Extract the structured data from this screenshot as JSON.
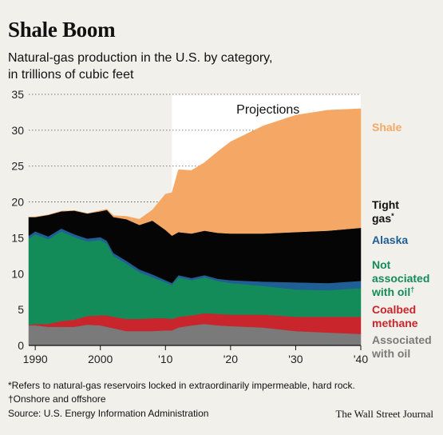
{
  "header": {
    "title": "Shale Boom",
    "subtitle_line1": "Natural-gas production in the U.S. by category,",
    "subtitle_line2": "in trillions of cubic feet"
  },
  "footer": {
    "note1": "*Refers to natural-gas reservoirs locked in extraordinarily impermeable, hard rock.",
    "note2": "†Onshore and offshore",
    "source": "Source: U.S. Energy Information Administration",
    "credit": "The Wall Street Journal"
  },
  "chart_data": {
    "type": "area",
    "stacked": true,
    "title": "Shale Boom",
    "subtitle": "Natural-gas production in the U.S. by category, in trillions of cubic feet",
    "annotation": "Projections",
    "projection_start": 2011,
    "xlim": [
      1989,
      2040
    ],
    "ylim": [
      0,
      35
    ],
    "y_ticks": [
      0,
      5,
      10,
      15,
      20,
      25,
      30,
      35
    ],
    "x_ticks": [
      1990,
      2000,
      2010,
      2020,
      2030,
      2040
    ],
    "x_tick_labels": [
      "1990",
      "2000",
      "'10",
      "'20",
      "'30",
      "'40"
    ],
    "grid": "horizontal dotted",
    "x": [
      1989,
      1990,
      1992,
      1994,
      1996,
      1998,
      2000,
      2001,
      2002,
      2004,
      2006,
      2008,
      2010,
      2011,
      2012,
      2014,
      2016,
      2018,
      2020,
      2025,
      2030,
      2035,
      2040
    ],
    "series": [
      {
        "name": "Associated with oil",
        "color": "#7a7a7a",
        "values": [
          2.8,
          2.8,
          2.6,
          2.6,
          2.6,
          2.9,
          2.8,
          2.6,
          2.4,
          2.0,
          2.0,
          2.0,
          2.1,
          2.1,
          2.5,
          2.8,
          3.0,
          2.8,
          2.7,
          2.5,
          2.0,
          1.8,
          1.6
        ]
      },
      {
        "name": "Coalbed methane",
        "color": "#c8252c",
        "values": [
          0.1,
          0.2,
          0.4,
          0.8,
          1.0,
          1.2,
          1.4,
          1.6,
          1.6,
          1.7,
          1.7,
          1.8,
          1.7,
          1.6,
          1.5,
          1.4,
          1.5,
          1.6,
          1.6,
          1.8,
          2.0,
          2.2,
          2.4
        ]
      },
      {
        "name": "Not associated with oil",
        "color": "#138c5a",
        "values": [
          12.0,
          12.5,
          11.8,
          12.5,
          11.5,
          10.4,
          10.5,
          10.0,
          8.5,
          7.7,
          6.5,
          5.7,
          5.0,
          4.7,
          5.5,
          4.9,
          5.0,
          4.6,
          4.4,
          4.0,
          3.8,
          3.7,
          4.0
        ]
      },
      {
        "name": "Alaska",
        "color": "#1f5f95",
        "values": [
          0.4,
          0.4,
          0.4,
          0.4,
          0.4,
          0.4,
          0.4,
          0.4,
          0.4,
          0.4,
          0.4,
          0.4,
          0.3,
          0.3,
          0.3,
          0.3,
          0.3,
          0.3,
          0.4,
          0.6,
          1.0,
          1.0,
          1.0
        ]
      },
      {
        "name": "Tight gas*",
        "color": "#050505",
        "values": [
          2.6,
          2.0,
          3.0,
          2.4,
          3.3,
          3.5,
          3.6,
          4.3,
          5.0,
          5.8,
          6.2,
          7.5,
          7.0,
          6.6,
          6.0,
          6.2,
          6.2,
          6.4,
          6.5,
          6.7,
          7.0,
          7.3,
          7.4
        ]
      },
      {
        "name": "Shale",
        "color": "#f5a865",
        "values": [
          0.0,
          0.0,
          0.0,
          0.0,
          0.0,
          0.0,
          0.1,
          0.1,
          0.2,
          0.4,
          0.8,
          1.5,
          5.0,
          6.0,
          8.7,
          8.8,
          9.5,
          11.3,
          12.8,
          15.0,
          16.3,
          16.8,
          16.6
        ]
      }
    ]
  }
}
